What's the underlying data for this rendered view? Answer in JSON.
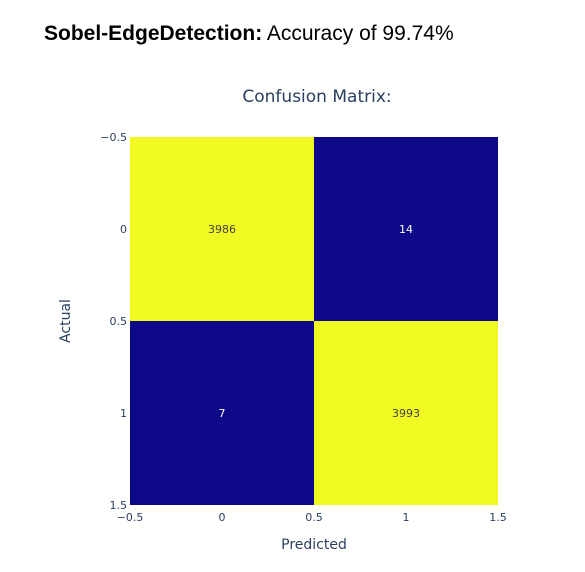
{
  "header": {
    "model_name": "Sobel-EdgeDetection:",
    "accuracy_text": "Accuracy of 99.74%"
  },
  "chart_data": {
    "type": "heatmap",
    "title": "Confusion Matrix:",
    "xlabel": "Predicted",
    "ylabel": "Actual",
    "x_categories": [
      "0",
      "1"
    ],
    "y_categories": [
      "0",
      "1"
    ],
    "z": [
      [
        3986,
        14
      ],
      [
        7,
        3993
      ]
    ],
    "xlim": [
      -0.5,
      1.5
    ],
    "ylim": [
      -0.5,
      1.5
    ],
    "y_reversed": true,
    "x_ticks": [
      "−0.5",
      "0",
      "0.5",
      "1",
      "1.5"
    ],
    "y_ticks": [
      "−0.5",
      "0",
      "0.5",
      "1",
      "1.5"
    ],
    "colorscale": {
      "low": "#0d0887",
      "high": "#f0f921"
    },
    "text_color_on_high": "#444444",
    "text_color_on_low": "#ffffff",
    "axis_label_color": "#2a3f5f"
  }
}
